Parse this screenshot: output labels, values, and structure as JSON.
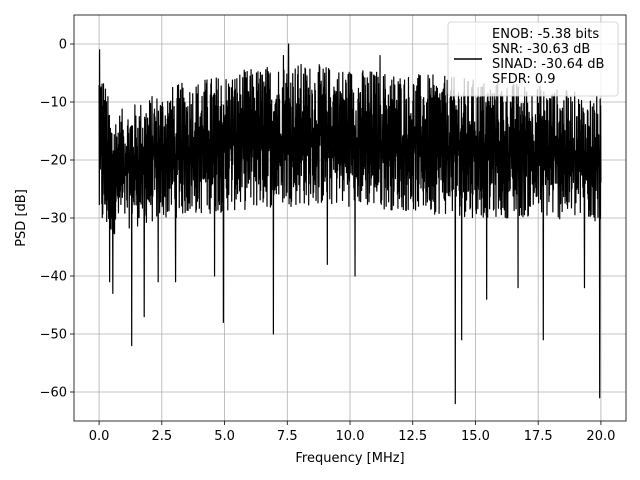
{
  "chart_data": {
    "type": "line",
    "xlabel": "Frequency [MHz]",
    "ylabel": "PSD [dB]",
    "xlim": [
      -1.0,
      21.0
    ],
    "ylim": [
      -65,
      5
    ],
    "xticks": [
      0.0,
      2.5,
      5.0,
      7.5,
      10.0,
      12.5,
      15.0,
      17.5,
      20.0
    ],
    "xtick_labels": [
      "0.0",
      "2.5",
      "5.0",
      "7.5",
      "10.0",
      "12.5",
      "15.0",
      "17.5",
      "20.0"
    ],
    "yticks": [
      0,
      -10,
      -20,
      -30,
      -40,
      -50,
      -60
    ],
    "ytick_labels": [
      "0",
      "−10",
      "−20",
      "−30",
      "−40",
      "−50",
      "−60"
    ],
    "grid": true,
    "legend_position": "top-right",
    "legend_entries": [
      "ENOB: -5.38 bits",
      "SNR: -30.63 dB",
      "SINAD: -30.64 dB",
      "SFDR: 0.9"
    ],
    "line_color": "#000000",
    "series": [
      {
        "x_range": [
          0.0,
          20.0
        ],
        "num_points": 2048,
        "envelope_x": [
          0.0,
          0.5,
          1.0,
          2.0,
          3.0,
          5.0,
          7.5,
          10.0,
          12.5,
          15.0,
          17.5,
          20.0
        ],
        "envelope_upper": [
          -1,
          -12,
          -11,
          -9,
          -7,
          -5,
          -3,
          -4,
          -5,
          -6,
          -7,
          -9
        ],
        "envelope_lower": [
          -33,
          -33,
          -32,
          -31,
          -30,
          -29,
          -28,
          -28,
          -29,
          -30,
          -30,
          -31
        ],
        "notable_dips": [
          {
            "x": 0.42,
            "y": -41
          },
          {
            "x": 0.55,
            "y": -43
          },
          {
            "x": 1.3,
            "y": -52
          },
          {
            "x": 1.8,
            "y": -47
          },
          {
            "x": 2.35,
            "y": -41
          },
          {
            "x": 3.05,
            "y": -41
          },
          {
            "x": 4.6,
            "y": -40
          },
          {
            "x": 4.95,
            "y": -48
          },
          {
            "x": 6.95,
            "y": -50
          },
          {
            "x": 9.1,
            "y": -38
          },
          {
            "x": 10.2,
            "y": -40
          },
          {
            "x": 14.2,
            "y": -62
          },
          {
            "x": 14.45,
            "y": -51
          },
          {
            "x": 15.45,
            "y": -44
          },
          {
            "x": 16.7,
            "y": -42
          },
          {
            "x": 17.7,
            "y": -51
          },
          {
            "x": 19.35,
            "y": -42
          },
          {
            "x": 19.95,
            "y": -61
          }
        ],
        "notable_peaks": [
          {
            "x": 0.02,
            "y": -1
          },
          {
            "x": 7.55,
            "y": 0
          },
          {
            "x": 7.35,
            "y": -2
          },
          {
            "x": 11.2,
            "y": -2
          }
        ]
      }
    ]
  }
}
